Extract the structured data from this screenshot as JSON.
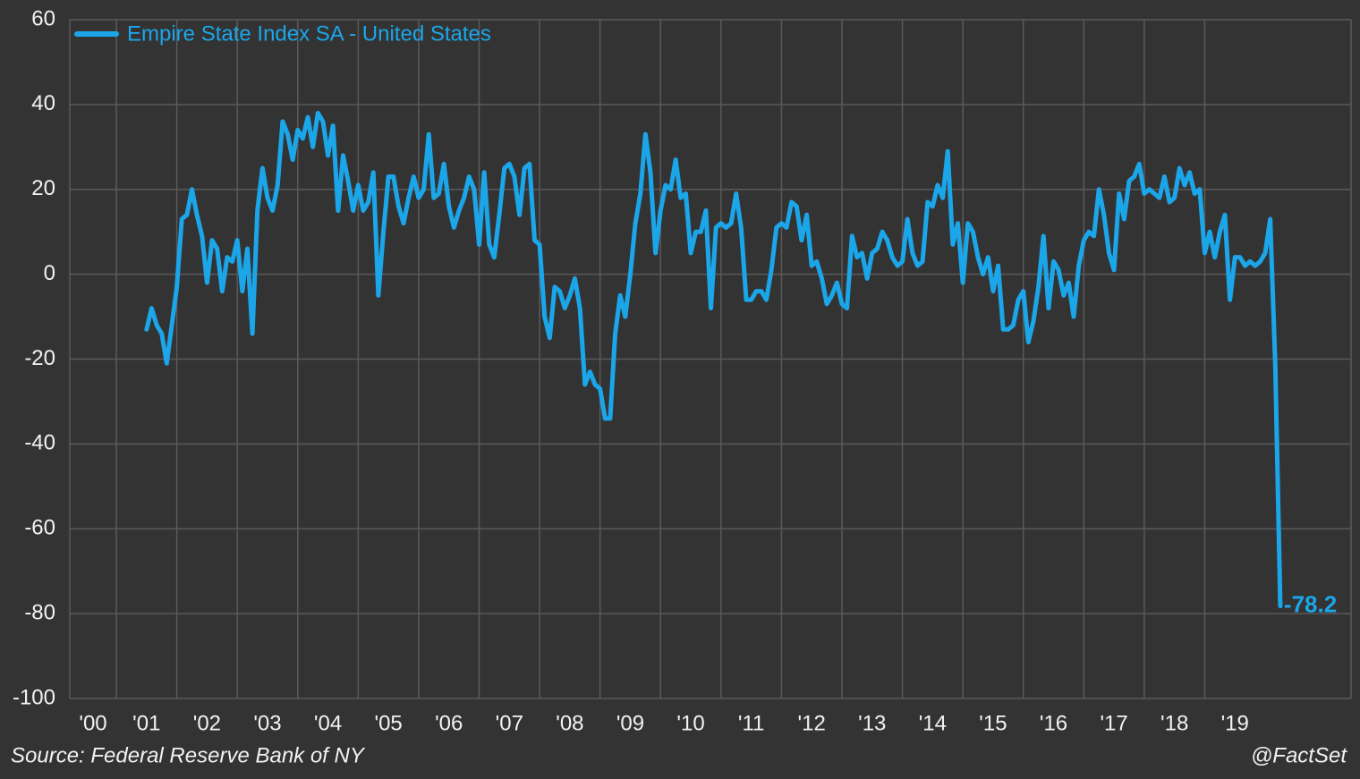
{
  "chart_data": {
    "type": "line",
    "source": "Source: Federal Reserve Bank of NY",
    "credit": "@FactSet",
    "legend": "top-left",
    "grid": true,
    "data_labels": "last",
    "xlim": [
      2000.23,
      2021.42
    ],
    "ylim": [
      -100,
      60
    ],
    "yticks": [
      -100,
      -80,
      -60,
      -40,
      -20,
      0,
      20,
      40,
      60
    ],
    "xticks": [
      {
        "value": 2000,
        "label": "'00"
      },
      {
        "value": 2001,
        "label": "'01"
      },
      {
        "value": 2002,
        "label": "'02"
      },
      {
        "value": 2003,
        "label": "'03"
      },
      {
        "value": 2004,
        "label": "'04"
      },
      {
        "value": 2005,
        "label": "'05"
      },
      {
        "value": 2006,
        "label": "'06"
      },
      {
        "value": 2007,
        "label": "'07"
      },
      {
        "value": 2008,
        "label": "'08"
      },
      {
        "value": 2009,
        "label": "'09"
      },
      {
        "value": 2010,
        "label": "'10"
      },
      {
        "value": 2011,
        "label": "'11"
      },
      {
        "value": 2012,
        "label": "'12"
      },
      {
        "value": 2013,
        "label": "'13"
      },
      {
        "value": 2014,
        "label": "'14"
      },
      {
        "value": 2015,
        "label": "'15"
      },
      {
        "value": 2016,
        "label": "'16"
      },
      {
        "value": 2017,
        "label": "'17"
      },
      {
        "value": 2018,
        "label": "'18"
      },
      {
        "value": 2019,
        "label": "'19"
      }
    ],
    "x": [
      2001.5,
      2001.583,
      2001.667,
      2001.75,
      2001.833,
      2001.917,
      2002,
      2002.083,
      2002.167,
      2002.25,
      2002.333,
      2002.417,
      2002.5,
      2002.583,
      2002.667,
      2002.75,
      2002.833,
      2002.917,
      2003,
      2003.083,
      2003.167,
      2003.25,
      2003.333,
      2003.417,
      2003.5,
      2003.583,
      2003.667,
      2003.75,
      2003.833,
      2003.917,
      2004,
      2004.083,
      2004.167,
      2004.25,
      2004.333,
      2004.417,
      2004.5,
      2004.583,
      2004.667,
      2004.75,
      2004.833,
      2004.917,
      2005,
      2005.083,
      2005.167,
      2005.25,
      2005.333,
      2005.417,
      2005.5,
      2005.583,
      2005.667,
      2005.75,
      2005.833,
      2005.917,
      2006,
      2006.083,
      2006.167,
      2006.25,
      2006.333,
      2006.417,
      2006.5,
      2006.583,
      2006.667,
      2006.75,
      2006.833,
      2006.917,
      2007,
      2007.083,
      2007.167,
      2007.25,
      2007.333,
      2007.417,
      2007.5,
      2007.583,
      2007.667,
      2007.75,
      2007.833,
      2007.917,
      2008,
      2008.083,
      2008.167,
      2008.25,
      2008.333,
      2008.417,
      2008.5,
      2008.583,
      2008.667,
      2008.75,
      2008.833,
      2008.917,
      2009,
      2009.083,
      2009.167,
      2009.25,
      2009.333,
      2009.417,
      2009.5,
      2009.583,
      2009.667,
      2009.75,
      2009.833,
      2009.917,
      2010,
      2010.083,
      2010.167,
      2010.25,
      2010.333,
      2010.417,
      2010.5,
      2010.583,
      2010.667,
      2010.75,
      2010.833,
      2010.917,
      2011,
      2011.083,
      2011.167,
      2011.25,
      2011.333,
      2011.417,
      2011.5,
      2011.583,
      2011.667,
      2011.75,
      2011.833,
      2011.917,
      2012,
      2012.083,
      2012.167,
      2012.25,
      2012.333,
      2012.417,
      2012.5,
      2012.583,
      2012.667,
      2012.75,
      2012.833,
      2012.917,
      2013,
      2013.083,
      2013.167,
      2013.25,
      2013.333,
      2013.417,
      2013.5,
      2013.583,
      2013.667,
      2013.75,
      2013.833,
      2013.917,
      2014,
      2014.083,
      2014.167,
      2014.25,
      2014.333,
      2014.417,
      2014.5,
      2014.583,
      2014.667,
      2014.75,
      2014.833,
      2014.917,
      2015,
      2015.083,
      2015.167,
      2015.25,
      2015.333,
      2015.417,
      2015.5,
      2015.583,
      2015.667,
      2015.75,
      2015.833,
      2015.917,
      2016,
      2016.083,
      2016.167,
      2016.25,
      2016.333,
      2016.417,
      2016.5,
      2016.583,
      2016.667,
      2016.75,
      2016.833,
      2016.917,
      2017,
      2017.083,
      2017.167,
      2017.25,
      2017.333,
      2017.417,
      2017.5,
      2017.583,
      2017.667,
      2017.75,
      2017.833,
      2017.917,
      2018,
      2018.083,
      2018.167,
      2018.25,
      2018.333,
      2018.417,
      2018.5,
      2018.583,
      2018.667,
      2018.75,
      2018.833,
      2018.917,
      2019,
      2019.083,
      2019.167,
      2019.25,
      2019.333,
      2019.417,
      2019.5,
      2019.583,
      2019.667,
      2019.75,
      2019.833,
      2019.917,
      2020,
      2020.083,
      2020.167,
      2020.25
    ],
    "series": [
      {
        "name": "Empire State Index SA - United States",
        "color": "#1ba6ea",
        "values": [
          -13,
          -8,
          -12,
          -14,
          -21,
          -12,
          -3,
          13,
          14,
          20,
          14,
          9,
          -2,
          8,
          6,
          -4,
          4,
          3,
          8,
          -4,
          6,
          -14,
          15,
          25,
          18,
          15,
          21,
          36,
          33,
          27,
          34,
          32,
          37,
          30,
          38,
          36,
          28,
          35,
          15,
          28,
          22,
          15,
          21,
          15,
          17,
          24,
          -5,
          10,
          23,
          23,
          16,
          12,
          18,
          23,
          18,
          20,
          33,
          18,
          19,
          26,
          16,
          11,
          15,
          18,
          23,
          20,
          7,
          24,
          7,
          4,
          14,
          25,
          26,
          23,
          14,
          25,
          26,
          8,
          7,
          -10,
          -15,
          -3,
          -4,
          -8,
          -5,
          -1,
          -8,
          -26,
          -23,
          -26,
          -27,
          -34,
          -34,
          -14,
          -5,
          -10,
          0,
          12,
          19,
          33,
          24,
          5,
          15,
          21,
          20,
          27,
          18,
          19,
          5,
          10,
          10,
          15,
          -8,
          11,
          12,
          11,
          12,
          19,
          11,
          -6,
          -6,
          -4,
          -4,
          -6,
          1,
          11,
          12,
          11,
          17,
          16,
          8,
          14,
          2,
          3,
          -1,
          -7,
          -5,
          -2,
          -7,
          -8,
          9,
          4,
          5,
          -1,
          5,
          6,
          10,
          8,
          4,
          2,
          3,
          13,
          5,
          2,
          3,
          17,
          16,
          21,
          18,
          29,
          7,
          12,
          -2,
          12,
          10,
          4,
          0,
          4,
          -4,
          2,
          -13,
          -13,
          -12,
          -6,
          -4,
          -16,
          -11,
          -3,
          9,
          -8,
          3,
          1,
          -5,
          -2,
          -10,
          2,
          8,
          10,
          9,
          20,
          14,
          5,
          1,
          19,
          13,
          22,
          23,
          26,
          19,
          20,
          19,
          18,
          23,
          17,
          18,
          25,
          21,
          24,
          19,
          20,
          5,
          10,
          4,
          10,
          14,
          -6,
          4,
          4,
          2,
          3,
          2,
          3,
          5,
          13,
          -21.5,
          -78.2
        ]
      }
    ]
  }
}
